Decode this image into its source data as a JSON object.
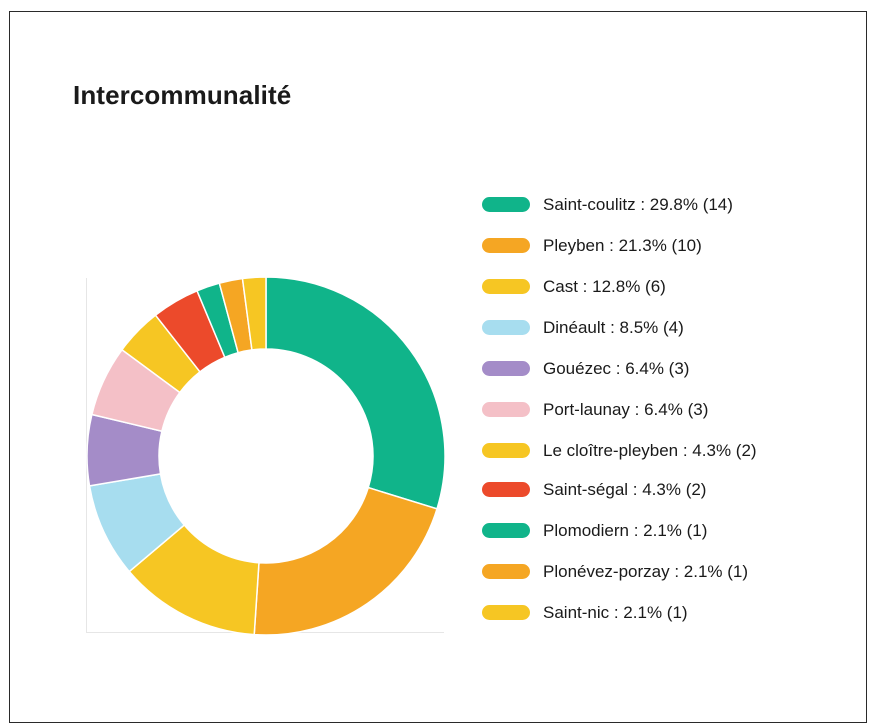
{
  "chart_data": {
    "type": "pie",
    "variant": "donut",
    "title": "Intercommunalité",
    "legend_position": "right",
    "slices": [
      {
        "name": "Saint-coulitz",
        "percent": 29.8,
        "count": 14,
        "color": "#10b48a",
        "label": "Saint-coulitz : 29.8% (14)"
      },
      {
        "name": "Pleyben",
        "percent": 21.3,
        "count": 10,
        "color": "#f5a623",
        "label": "Pleyben : 21.3% (10)"
      },
      {
        "name": "Cast",
        "percent": 12.8,
        "count": 6,
        "color": "#f6c623",
        "label": "Cast : 12.8% (6)"
      },
      {
        "name": "Dinéault",
        "percent": 8.5,
        "count": 4,
        "color": "#a7ddef",
        "label": "Dinéault : 8.5% (4)"
      },
      {
        "name": "Gouézec",
        "percent": 6.4,
        "count": 3,
        "color": "#a48cc8",
        "label": "Gouézec : 6.4% (3)"
      },
      {
        "name": "Port-launay",
        "percent": 6.4,
        "count": 3,
        "color": "#f4c0c7",
        "label": "Port-launay : 6.4% (3)"
      },
      {
        "name": "Le cloître-pleyben",
        "percent": 4.3,
        "count": 2,
        "color": "#f6c623",
        "label": "Le cloître-pleyben : 4.3% (2)"
      },
      {
        "name": "Saint-ségal",
        "percent": 4.3,
        "count": 2,
        "color": "#ec4a2b",
        "label": "Saint-ségal : 4.3% (2)"
      },
      {
        "name": "Plomodiern",
        "percent": 2.1,
        "count": 1,
        "color": "#10b48a",
        "label": "Plomodiern : 2.1% (1)"
      },
      {
        "name": "Plonévez-porzay",
        "percent": 2.1,
        "count": 1,
        "color": "#f5a623",
        "label": "Plonévez-porzay : 2.1% (1)"
      },
      {
        "name": "Saint-nic",
        "percent": 2.1,
        "count": 1,
        "color": "#f6c623",
        "label": "Saint-nic : 2.1% (1)"
      }
    ]
  }
}
